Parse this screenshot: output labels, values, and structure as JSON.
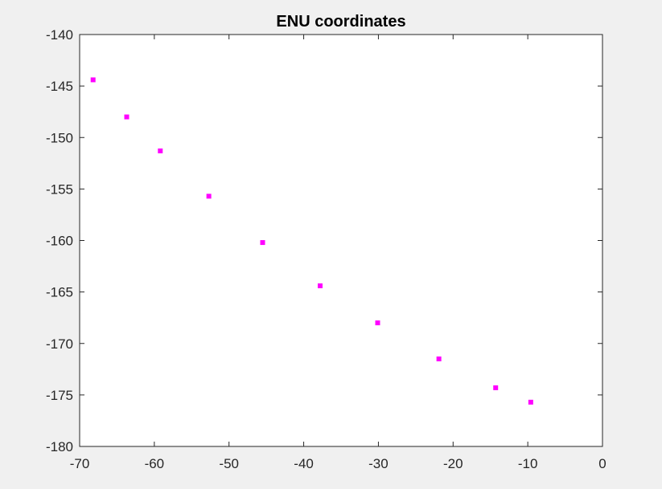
{
  "chart_data": {
    "type": "scatter",
    "title": "ENU coordinates",
    "xlabel": "",
    "ylabel": "",
    "xlim": [
      -70,
      0
    ],
    "ylim": [
      -180,
      -140
    ],
    "xticks": [
      -70,
      -60,
      -50,
      -40,
      -30,
      -20,
      -10,
      0
    ],
    "yticks": [
      -140,
      -145,
      -150,
      -155,
      -160,
      -165,
      -170,
      -175,
      -180
    ],
    "grid": false,
    "marker": "square",
    "marker_color": "#ff00ff",
    "axes_background": "#ffffff",
    "figure_background": "#f0f0f0",
    "series": [
      {
        "x": [
          -68.2,
          -63.7,
          -59.2,
          -52.7,
          -45.5,
          -37.8,
          -30.1,
          -21.9,
          -14.3,
          -9.6
        ],
        "y": [
          -144.4,
          -148.0,
          -151.3,
          -155.7,
          -160.2,
          -164.4,
          -168.0,
          -171.5,
          -174.3,
          -175.7
        ]
      }
    ]
  }
}
